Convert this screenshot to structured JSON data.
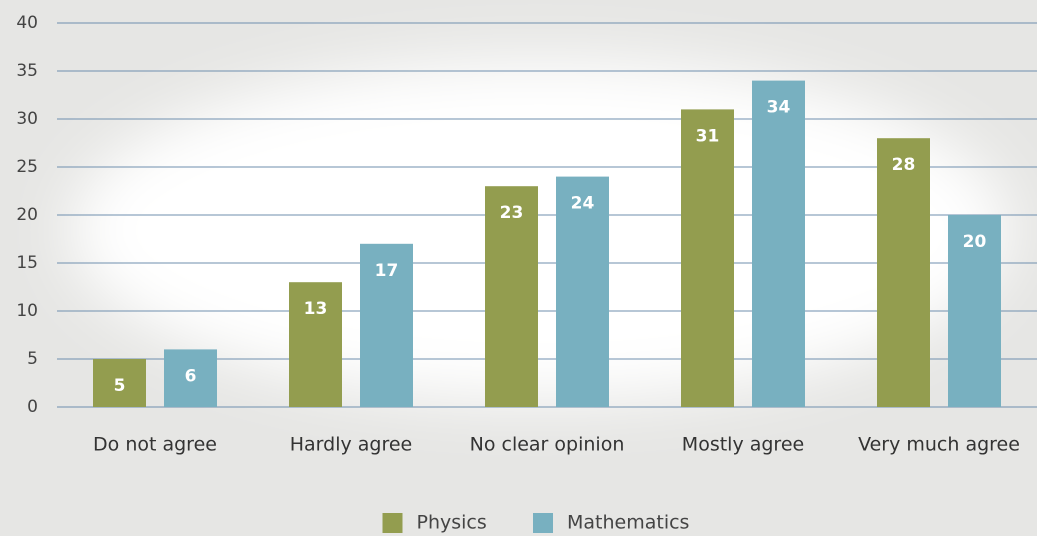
{
  "chart_data": {
    "type": "bar",
    "categories": [
      "Do not agree",
      "Hardly agree",
      "No clear opinion",
      "Mostly agree",
      "Very much agree"
    ],
    "series": [
      {
        "name": "Physics",
        "color": "#939d4f",
        "values": [
          5,
          13,
          23,
          31,
          28
        ]
      },
      {
        "name": "Mathematics",
        "color": "#78b0c0",
        "values": [
          6,
          17,
          24,
          34,
          20
        ]
      }
    ],
    "ylim": [
      0,
      40
    ],
    "yticks": [
      0,
      5,
      10,
      15,
      20,
      25,
      30,
      35,
      40
    ],
    "grid": true,
    "legend": "bottom"
  }
}
